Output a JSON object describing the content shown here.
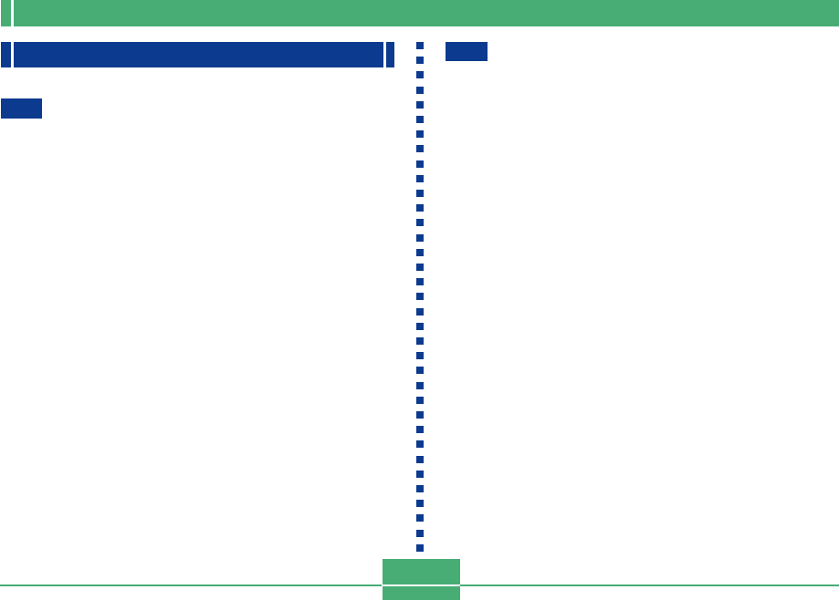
{
  "colors": {
    "accent_green": "#47ad75",
    "accent_blue": "#0c3a8f"
  },
  "divider": {
    "dot_count": 35
  }
}
